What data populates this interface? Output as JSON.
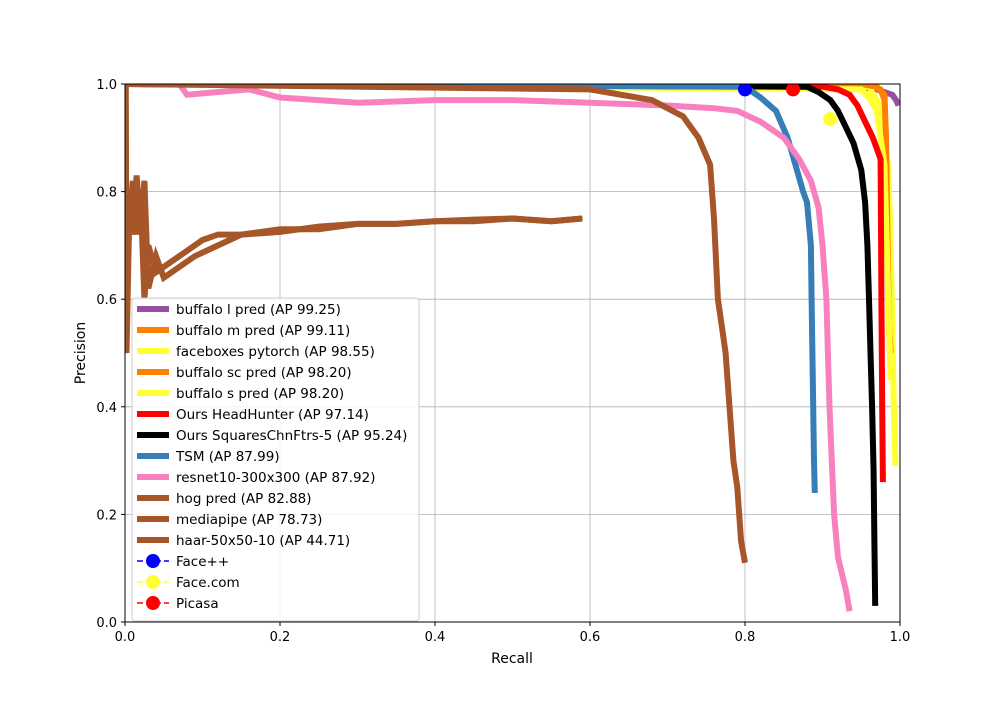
{
  "chart_data": {
    "type": "line",
    "title": "",
    "xlabel": "Recall",
    "ylabel": "Precision",
    "xlim": [
      0,
      1
    ],
    "ylim": [
      0,
      1
    ],
    "xticks": [
      "0.0",
      "0.2",
      "0.4",
      "0.6",
      "0.8",
      "1.0"
    ],
    "yticks": [
      "0.0",
      "0.2",
      "0.4",
      "0.6",
      "0.8",
      "1.0"
    ],
    "grid": true,
    "legend_position": "lower-left",
    "series": [
      {
        "name": "buffalo l pred (AP 99.25)",
        "color": "#984ea3",
        "kind": "line",
        "points": [
          [
            0,
            1.0
          ],
          [
            0.43,
            1.0
          ],
          [
            0.44,
            0.995
          ],
          [
            0.94,
            0.995
          ],
          [
            0.97,
            0.99
          ],
          [
            0.99,
            0.98
          ],
          [
            0.995,
            0.97
          ],
          [
            0.998,
            0.96
          ]
        ]
      },
      {
        "name": "buffalo m pred (AP 99.11)",
        "color": "#ff7f00",
        "kind": "line",
        "points": [
          [
            0,
            1.0
          ],
          [
            0.96,
            1.0
          ],
          [
            0.975,
            0.99
          ],
          [
            0.98,
            0.97
          ],
          [
            0.983,
            0.8
          ],
          [
            0.985,
            0.6
          ],
          [
            0.987,
            0.5
          ]
        ]
      },
      {
        "name": "faceboxes pytorch (AP 98.55)",
        "color": "#ffff33",
        "kind": "line",
        "points": [
          [
            0,
            1.0
          ],
          [
            0.96,
            0.995
          ],
          [
            0.97,
            0.97
          ],
          [
            0.975,
            0.95
          ],
          [
            0.98,
            0.9
          ],
          [
            0.985,
            0.84
          ],
          [
            0.988,
            0.7
          ],
          [
            0.99,
            0.55
          ],
          [
            0.992,
            0.4
          ],
          [
            0.994,
            0.29
          ]
        ]
      },
      {
        "name": "buffalo sc pred (AP 98.20)",
        "color": "#ff7f00",
        "kind": "line",
        "points": [
          [
            0,
            1.0
          ],
          [
            0.95,
            1.0
          ],
          [
            0.97,
            0.995
          ],
          [
            0.98,
            0.98
          ],
          [
            0.982,
            0.9
          ],
          [
            0.984,
            0.7
          ],
          [
            0.986,
            0.55
          ],
          [
            0.988,
            0.5
          ]
        ]
      },
      {
        "name": "buffalo s pred (AP 98.20)",
        "color": "#ffff33",
        "kind": "line",
        "points": [
          [
            0,
            1.0
          ],
          [
            0.95,
            0.99
          ],
          [
            0.96,
            0.975
          ],
          [
            0.97,
            0.95
          ],
          [
            0.975,
            0.9
          ],
          [
            0.98,
            0.85
          ],
          [
            0.983,
            0.7
          ],
          [
            0.986,
            0.55
          ],
          [
            0.988,
            0.45
          ]
        ]
      },
      {
        "name": "Ours HeadHunter (AP 97.14)",
        "color": "#ff0000",
        "kind": "line",
        "points": [
          [
            0,
            1.0
          ],
          [
            0.9,
            0.995
          ],
          [
            0.92,
            0.99
          ],
          [
            0.935,
            0.98
          ],
          [
            0.945,
            0.96
          ],
          [
            0.955,
            0.93
          ],
          [
            0.965,
            0.9
          ],
          [
            0.97,
            0.88
          ],
          [
            0.975,
            0.86
          ],
          [
            0.976,
            0.6
          ],
          [
            0.977,
            0.4
          ],
          [
            0.978,
            0.26
          ]
        ]
      },
      {
        "name": "Ours SquaresChnFtrs-5 (AP 95.24)",
        "color": "#000000",
        "kind": "line",
        "points": [
          [
            0,
            1.0
          ],
          [
            0.88,
            0.995
          ],
          [
            0.895,
            0.985
          ],
          [
            0.91,
            0.97
          ],
          [
            0.92,
            0.95
          ],
          [
            0.93,
            0.92
          ],
          [
            0.94,
            0.89
          ],
          [
            0.95,
            0.84
          ],
          [
            0.955,
            0.78
          ],
          [
            0.958,
            0.7
          ],
          [
            0.96,
            0.6
          ],
          [
            0.962,
            0.5
          ],
          [
            0.964,
            0.4
          ],
          [
            0.966,
            0.28
          ],
          [
            0.967,
            0.15
          ],
          [
            0.968,
            0.03
          ]
        ]
      },
      {
        "name": "TSM (AP 87.99)",
        "color": "#377eb8",
        "kind": "line",
        "points": [
          [
            0,
            1.0
          ],
          [
            0.8,
            0.995
          ],
          [
            0.82,
            0.975
          ],
          [
            0.84,
            0.95
          ],
          [
            0.855,
            0.9
          ],
          [
            0.865,
            0.85
          ],
          [
            0.875,
            0.8
          ],
          [
            0.88,
            0.78
          ],
          [
            0.885,
            0.7
          ],
          [
            0.886,
            0.6
          ],
          [
            0.887,
            0.5
          ],
          [
            0.888,
            0.4
          ],
          [
            0.889,
            0.3
          ],
          [
            0.89,
            0.24
          ]
        ]
      },
      {
        "name": "resnet10-300x300 (AP 87.92)",
        "color": "#f781bf",
        "kind": "line",
        "points": [
          [
            0,
            1.0
          ],
          [
            0.07,
            1.0
          ],
          [
            0.08,
            0.98
          ],
          [
            0.16,
            0.99
          ],
          [
            0.2,
            0.975
          ],
          [
            0.3,
            0.965
          ],
          [
            0.4,
            0.97
          ],
          [
            0.5,
            0.97
          ],
          [
            0.6,
            0.965
          ],
          [
            0.7,
            0.96
          ],
          [
            0.76,
            0.955
          ],
          [
            0.79,
            0.95
          ],
          [
            0.82,
            0.93
          ],
          [
            0.85,
            0.9
          ],
          [
            0.87,
            0.86
          ],
          [
            0.885,
            0.82
          ],
          [
            0.895,
            0.77
          ],
          [
            0.9,
            0.7
          ],
          [
            0.905,
            0.6
          ],
          [
            0.907,
            0.5
          ],
          [
            0.909,
            0.4
          ],
          [
            0.912,
            0.3
          ],
          [
            0.915,
            0.2
          ],
          [
            0.92,
            0.12
          ],
          [
            0.93,
            0.06
          ],
          [
            0.935,
            0.02
          ]
        ]
      },
      {
        "name": "hog pred (AP 82.88)",
        "color": "#a65628",
        "kind": "line",
        "points": [
          [
            0.001,
            1.0
          ],
          [
            0.002,
            0.5
          ],
          [
            0.005,
            0.72
          ],
          [
            0.01,
            0.82
          ],
          [
            0.015,
            0.72
          ],
          [
            0.02,
            0.8
          ],
          [
            0.025,
            0.6
          ],
          [
            0.03,
            0.7
          ],
          [
            0.04,
            0.65
          ],
          [
            0.06,
            0.67
          ],
          [
            0.08,
            0.69
          ],
          [
            0.1,
            0.71
          ],
          [
            0.12,
            0.72
          ],
          [
            0.15,
            0.72
          ],
          [
            0.2,
            0.73
          ],
          [
            0.25,
            0.73
          ],
          [
            0.3,
            0.74
          ],
          [
            0.35,
            0.74
          ],
          [
            0.4,
            0.745
          ],
          [
            0.45,
            0.745
          ],
          [
            0.5,
            0.75
          ],
          [
            0.55,
            0.745
          ],
          [
            0.59,
            0.75
          ]
        ]
      },
      {
        "name": "mediapipe (AP 78.73)",
        "color": "#a65628",
        "kind": "line",
        "points": [
          [
            0,
            1.0
          ],
          [
            0.6,
            0.99
          ],
          [
            0.68,
            0.97
          ],
          [
            0.72,
            0.94
          ],
          [
            0.74,
            0.9
          ],
          [
            0.755,
            0.85
          ],
          [
            0.76,
            0.75
          ],
          [
            0.765,
            0.6
          ],
          [
            0.77,
            0.55
          ],
          [
            0.775,
            0.5
          ],
          [
            0.78,
            0.4
          ],
          [
            0.785,
            0.3
          ],
          [
            0.79,
            0.25
          ],
          [
            0.795,
            0.15
          ],
          [
            0.8,
            0.11
          ]
        ]
      },
      {
        "name": "haar-50x50-10 (AP 44.71)",
        "color": "#a65628",
        "kind": "line",
        "points": [
          [
            0.0,
            0.5
          ],
          [
            0.005,
            0.8
          ],
          [
            0.01,
            0.72
          ],
          [
            0.015,
            0.83
          ],
          [
            0.02,
            0.73
          ],
          [
            0.025,
            0.82
          ],
          [
            0.03,
            0.62
          ],
          [
            0.04,
            0.68
          ],
          [
            0.05,
            0.64
          ],
          [
            0.07,
            0.66
          ],
          [
            0.09,
            0.68
          ],
          [
            0.12,
            0.7
          ],
          [
            0.15,
            0.72
          ],
          [
            0.2,
            0.725
          ],
          [
            0.25,
            0.735
          ],
          [
            0.3,
            0.74
          ],
          [
            0.35,
            0.74
          ],
          [
            0.4,
            0.745
          ],
          [
            0.45,
            0.748
          ],
          [
            0.5,
            0.75
          ],
          [
            0.55,
            0.745
          ],
          [
            0.59,
            0.75
          ]
        ]
      },
      {
        "name": "Face++",
        "color": "#0000ff",
        "kind": "marker",
        "points": [
          [
            0.8,
            0.99
          ]
        ]
      },
      {
        "name": "Face.com",
        "color": "#ffff33",
        "kind": "marker",
        "points": [
          [
            0.91,
            0.935
          ]
        ]
      },
      {
        "name": "Picasa",
        "color": "#ff0000",
        "kind": "marker",
        "points": [
          [
            0.862,
            0.99
          ]
        ]
      }
    ]
  }
}
